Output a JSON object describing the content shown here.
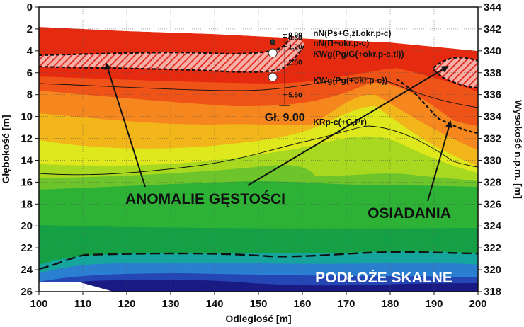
{
  "chart_data": {
    "type": "heatmap",
    "title": "",
    "xlabel": "Odległość [m]",
    "ylabel_left": "Głębokość [m]",
    "ylabel_right": "Wysokość n.p.m. [m]",
    "xlim": [
      100,
      200
    ],
    "ylim_depth": [
      0,
      26
    ],
    "ylim_elevation": [
      318,
      344
    ],
    "x_ticks": [
      "100",
      "110",
      "120",
      "130",
      "140",
      "150",
      "160",
      "170",
      "180",
      "190",
      "200"
    ],
    "y_ticks_left": [
      "0",
      "2",
      "4",
      "6",
      "8",
      "10",
      "12",
      "14",
      "16",
      "18",
      "20",
      "22",
      "24",
      "26"
    ],
    "y_ticks_right": [
      "344",
      "342",
      "340",
      "338",
      "336",
      "334",
      "332",
      "330",
      "328",
      "326",
      "324",
      "322",
      "320",
      "318"
    ],
    "grid": true,
    "surface_depth": [
      [
        100,
        1.8
      ],
      [
        150,
        2.6
      ],
      [
        200,
        4.0
      ]
    ],
    "bedrock_top_depth": [
      [
        100,
        24.0
      ],
      [
        108,
        22.8
      ],
      [
        130,
        22.5
      ],
      [
        160,
        22.9
      ],
      [
        180,
        22.4
      ],
      [
        200,
        22.5
      ]
    ],
    "borehole": {
      "x": 156,
      "bottom_depth": 9.0,
      "label": "Gł. 9.00",
      "depth_labels": [
        {
          "depth": 2.5,
          "text": "0.00"
        },
        {
          "depth": 2.75,
          "text": "0.30"
        },
        {
          "depth": 3.6,
          "text": "1.20"
        },
        {
          "depth": 5.0,
          "text": "2.50"
        },
        {
          "depth": 8.0,
          "text": "5.50"
        }
      ],
      "markers": [
        {
          "depth": 3.2,
          "type": "filled"
        },
        {
          "depth": 4.2,
          "type": "open"
        },
        {
          "depth": 6.4,
          "type": "open"
        }
      ]
    },
    "layers": [
      {
        "text": "nN(Ps+G,żl.okr.p-c)",
        "depth": 2.4
      },
      {
        "text": "nN(Π+okr.p-c)",
        "depth": 3.3
      },
      {
        "text": "KWg(Pg/G(+okr.p-c,ti))",
        "depth": 4.3
      },
      {
        "text": "KWg(Pg(+okr.p-c))",
        "depth": 6.7
      },
      {
        "text": "KRp-c(+G,Pr)",
        "depth": 10.5
      }
    ],
    "annotations": [
      {
        "text": "ANOMALIE GĘSTOŚCI"
      },
      {
        "text": "OSIADANIA"
      },
      {
        "text": "PODŁOŻE SKALNE"
      }
    ],
    "colors": {
      "red": "#e62a10",
      "orange_red": "#ef5318",
      "orange": "#f5871e",
      "yellow_orange": "#f2b51a",
      "yellow": "#dfe81c",
      "yellow_green": "#a8d820",
      "light_green": "#6ec42b",
      "green": "#2db236",
      "dark_green": "#16a046",
      "teal": "#15a59c",
      "cyan": "#2b7fd0",
      "blue": "#2546b5",
      "navy": "#1a1a85",
      "hatch": "#f4a8a0"
    }
  }
}
